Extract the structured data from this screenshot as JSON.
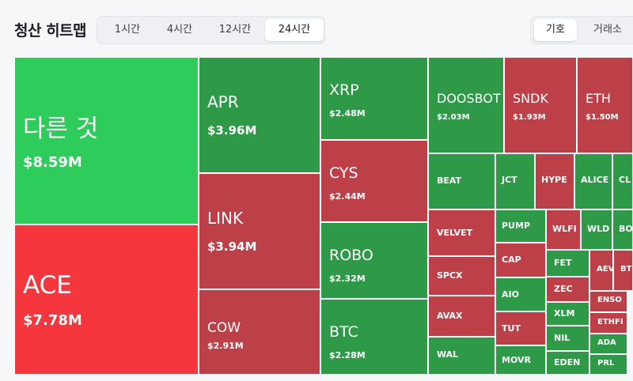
{
  "header": {
    "title": "청산 히트맵",
    "time_options": [
      "1시간",
      "4시간",
      "12시간",
      "24시간"
    ],
    "time_selected": "24시간",
    "group_options": [
      "기호",
      "거래소"
    ],
    "group_selected": "기호"
  },
  "colors": {
    "bright_green": "#2ecc5a",
    "bright_red": "#f5363c",
    "green": "#2e9a48",
    "red": "#bd4048"
  },
  "tiles": [
    {
      "symbol": "다른 것",
      "amount": "$8.59M",
      "color": "bright_green"
    },
    {
      "symbol": "ACE",
      "amount": "$7.78M",
      "color": "bright_red"
    },
    {
      "symbol": "APR",
      "amount": "$3.96M",
      "color": "green"
    },
    {
      "symbol": "LINK",
      "amount": "$3.94M",
      "color": "red"
    },
    {
      "symbol": "COW",
      "amount": "$2.91M",
      "color": "red"
    },
    {
      "symbol": "XRP",
      "amount": "$2.48M",
      "color": "green"
    },
    {
      "symbol": "CYS",
      "amount": "$2.44M",
      "color": "red"
    },
    {
      "symbol": "ROBO",
      "amount": "$2.32M",
      "color": "green"
    },
    {
      "symbol": "BTC",
      "amount": "$2.28M",
      "color": "green"
    },
    {
      "symbol": "DOOSBOT",
      "amount": "$2.03M",
      "color": "green"
    },
    {
      "symbol": "SNDK",
      "amount": "$1.93M",
      "color": "red"
    },
    {
      "symbol": "ETH",
      "amount": "$1.50M",
      "color": "red"
    },
    {
      "symbol": "BEAT",
      "amount": "",
      "color": "green"
    },
    {
      "symbol": "JCT",
      "amount": "",
      "color": "green"
    },
    {
      "symbol": "HYPE",
      "amount": "",
      "color": "red"
    },
    {
      "symbol": "ALICE",
      "amount": "",
      "color": "green"
    },
    {
      "symbol": "CL",
      "amount": "",
      "color": "green"
    },
    {
      "symbol": "VELVET",
      "amount": "",
      "color": "red"
    },
    {
      "symbol": "PUMP",
      "amount": "",
      "color": "green"
    },
    {
      "symbol": "WLFI",
      "amount": "",
      "color": "red"
    },
    {
      "symbol": "WLD",
      "amount": "",
      "color": "green"
    },
    {
      "symbol": "BO",
      "amount": "",
      "color": "green"
    },
    {
      "symbol": "SPCX",
      "amount": "",
      "color": "red"
    },
    {
      "symbol": "CAP",
      "amount": "",
      "color": "red"
    },
    {
      "symbol": "FET",
      "amount": "",
      "color": "green"
    },
    {
      "symbol": "AEV",
      "amount": "",
      "color": "red"
    },
    {
      "symbol": "BTR",
      "amount": "",
      "color": "red"
    },
    {
      "symbol": "AIO",
      "amount": "",
      "color": "green"
    },
    {
      "symbol": "ZEC",
      "amount": "",
      "color": "red"
    },
    {
      "symbol": "AVAX",
      "amount": "",
      "color": "red"
    },
    {
      "symbol": "ENSO",
      "amount": "",
      "color": "red"
    },
    {
      "symbol": "XLM",
      "amount": "",
      "color": "green"
    },
    {
      "symbol": "TUT",
      "amount": "",
      "color": "red"
    },
    {
      "symbol": "ETHFI",
      "amount": "",
      "color": "red"
    },
    {
      "symbol": "NIL",
      "amount": "",
      "color": "green"
    },
    {
      "symbol": "ADA",
      "amount": "",
      "color": "green"
    },
    {
      "symbol": "WAL",
      "amount": "",
      "color": "green"
    },
    {
      "symbol": "MOVR",
      "amount": "",
      "color": "green"
    },
    {
      "symbol": "EDEN",
      "amount": "",
      "color": "green"
    },
    {
      "symbol": "PRL",
      "amount": "",
      "color": "green"
    }
  ]
}
